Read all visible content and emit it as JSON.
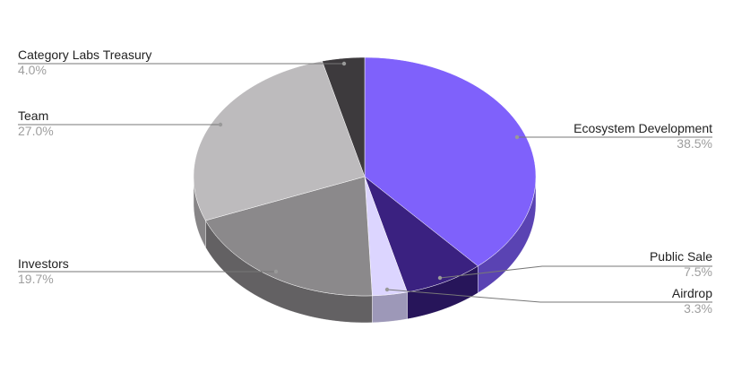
{
  "chart_data": {
    "type": "pie",
    "style": "3d",
    "slices": [
      {
        "label": "Ecosystem Development",
        "value": 38.5,
        "pct_label": "38.5%",
        "color": "#7f61fb",
        "side_color": "#5a43b3"
      },
      {
        "label": "Public Sale",
        "value": 7.5,
        "pct_label": "7.5%",
        "color": "#3a2180",
        "side_color": "#27155a"
      },
      {
        "label": "Airdrop",
        "value": 3.3,
        "pct_label": "3.3%",
        "color": "#dcd5ff",
        "side_color": "#9d98b8"
      },
      {
        "label": "Investors",
        "value": 19.7,
        "pct_label": "19.7%",
        "color": "#8b898b",
        "side_color": "#636163"
      },
      {
        "label": "Team",
        "value": 27.0,
        "pct_label": "27.0%",
        "color": "#bdbbbd",
        "side_color": "#878587"
      },
      {
        "label": "Category Labs Treasury",
        "value": 4.0,
        "pct_label": "4.0%",
        "color": "#3d3a3d",
        "side_color": "#2a282a"
      }
    ],
    "legend": "none (leader-line labels)"
  }
}
